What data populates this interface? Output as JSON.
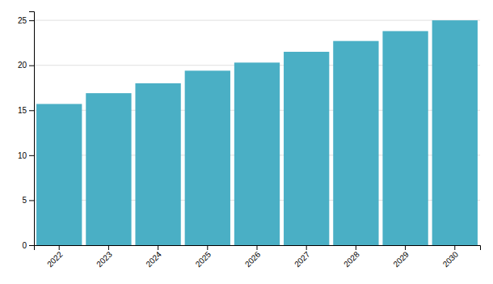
{
  "chart_data": {
    "type": "bar",
    "categories": [
      "2022",
      "2023",
      "2024",
      "2025",
      "2026",
      "2027",
      "2028",
      "2029",
      "2030"
    ],
    "values": [
      15.7,
      16.9,
      18.0,
      19.4,
      20.3,
      21.5,
      22.7,
      23.8,
      25.0
    ],
    "color": "#4aafc5",
    "ylim": [
      0,
      26
    ],
    "yticks": [
      0,
      5,
      10,
      15,
      20,
      25
    ],
    "grid": true
  }
}
